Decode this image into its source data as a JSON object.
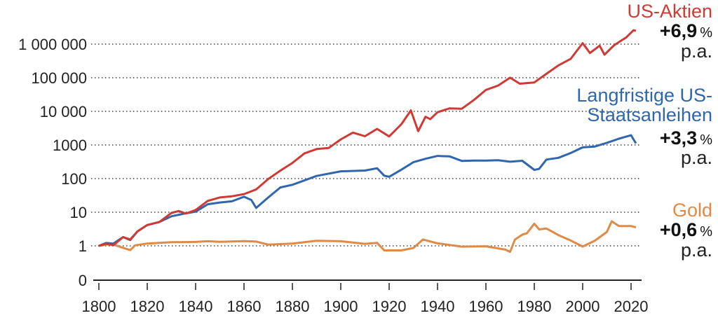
{
  "chart_data": {
    "type": "line",
    "title": "",
    "xlabel": "",
    "ylabel": "",
    "yscale": "log",
    "xlim": [
      1800,
      2022
    ],
    "ylim_log10": [
      0,
      6.5
    ],
    "grid": true,
    "xticks": [
      "1800",
      "1820",
      "1840",
      "1860",
      "1880",
      "1900",
      "1920",
      "1940",
      "1960",
      "1980",
      "2000",
      "2020"
    ],
    "yticks": [
      {
        "label": "1 000 000",
        "log10": 6
      },
      {
        "label": "100 000",
        "log10": 5
      },
      {
        "label": "10 000",
        "log10": 4
      },
      {
        "label": "1000",
        "log10": 3
      },
      {
        "label": "100",
        "log10": 2
      },
      {
        "label": "10",
        "log10": 1
      },
      {
        "label": "1",
        "log10": 0
      }
    ],
    "y_zero_label": "0",
    "series": [
      {
        "name": "US-Aktien",
        "color": "#d03a35",
        "return": "+6,9",
        "unit": "%",
        "suffix": "p.a.",
        "x": [
          1800,
          1803,
          1806,
          1810,
          1813,
          1816,
          1820,
          1825,
          1830,
          1833,
          1836,
          1840,
          1845,
          1850,
          1855,
          1860,
          1865,
          1870,
          1875,
          1880,
          1885,
          1890,
          1895,
          1900,
          1905,
          1910,
          1915,
          1920,
          1925,
          1929,
          1932,
          1935,
          1937,
          1940,
          1945,
          1950,
          1955,
          1960,
          1965,
          1970,
          1974,
          1980,
          1985,
          1990,
          1995,
          2000,
          2003,
          2007,
          2009,
          2013,
          2018,
          2021,
          2022
        ],
        "log10": [
          0,
          0.1,
          0.05,
          0.3,
          0.2,
          0.4,
          0.6,
          0.75,
          0.95,
          1.05,
          1.0,
          1.1,
          1.3,
          1.45,
          1.5,
          1.5,
          1.7,
          2.0,
          2.2,
          2.5,
          2.75,
          2.85,
          2.95,
          3.15,
          3.35,
          3.3,
          3.45,
          3.25,
          3.65,
          4.05,
          3.45,
          3.85,
          3.75,
          4.0,
          4.05,
          4.1,
          4.35,
          4.6,
          4.8,
          5.0,
          4.8,
          4.9,
          5.1,
          5.35,
          5.6,
          6.0,
          5.75,
          5.95,
          5.7,
          6.0,
          6.2,
          6.45,
          6.4
        ]
      },
      {
        "name": "Langfristige US-Staatsanleihen",
        "color": "#2f66ae",
        "return": "+3,3",
        "unit": "%",
        "suffix": "p.a.",
        "x": [
          1800,
          1803,
          1806,
          1810,
          1813,
          1816,
          1820,
          1825,
          1830,
          1835,
          1840,
          1845,
          1850,
          1855,
          1860,
          1863,
          1865,
          1870,
          1875,
          1880,
          1890,
          1900,
          1910,
          1915,
          1918,
          1920,
          1925,
          1930,
          1935,
          1940,
          1945,
          1950,
          1955,
          1960,
          1965,
          1970,
          1975,
          1980,
          1982,
          1985,
          1990,
          1995,
          2000,
          2005,
          2010,
          2015,
          2020,
          2022
        ],
        "log10": [
          0,
          0.12,
          0.1,
          0.3,
          0.18,
          0.4,
          0.6,
          0.75,
          0.85,
          0.95,
          1.05,
          1.2,
          1.3,
          1.35,
          1.42,
          1.35,
          1.15,
          1.45,
          1.7,
          1.85,
          2.05,
          2.2,
          2.28,
          2.28,
          2.1,
          2.05,
          2.3,
          2.45,
          2.6,
          2.7,
          2.62,
          2.55,
          2.55,
          2.5,
          2.58,
          2.5,
          2.5,
          2.3,
          2.25,
          2.55,
          2.6,
          2.8,
          2.9,
          2.95,
          3.1,
          3.15,
          3.3,
          3.05
        ]
      },
      {
        "name": "Gold",
        "color": "#e08a45",
        "return": "+0,6",
        "unit": "%",
        "suffix": "p.a.",
        "x": [
          1800,
          1805,
          1810,
          1813,
          1815,
          1820,
          1830,
          1840,
          1845,
          1850,
          1860,
          1865,
          1870,
          1880,
          1890,
          1900,
          1910,
          1915,
          1918,
          1920,
          1925,
          1930,
          1934,
          1940,
          1950,
          1960,
          1968,
          1970,
          1972,
          1975,
          1977,
          1980,
          1982,
          1985,
          1990,
          1995,
          2000,
          2005,
          2010,
          2012,
          2015,
          2020,
          2022
        ],
        "log10": [
          0,
          0.03,
          -0.02,
          -0.12,
          0,
          0.05,
          0.08,
          0.15,
          0.1,
          0.13,
          0.1,
          0.15,
          0.05,
          0.1,
          0.12,
          0.12,
          0.1,
          0.06,
          -0.12,
          -0.14,
          -0.1,
          -0.1,
          0.15,
          0.1,
          0.0,
          -0.05,
          -0.12,
          -0.18,
          0.2,
          0.3,
          0.4,
          0.7,
          0.45,
          0.5,
          0.3,
          0.2,
          -0.05,
          0.15,
          0.45,
          0.7,
          0.55,
          0.6,
          0.55
        ]
      }
    ]
  }
}
